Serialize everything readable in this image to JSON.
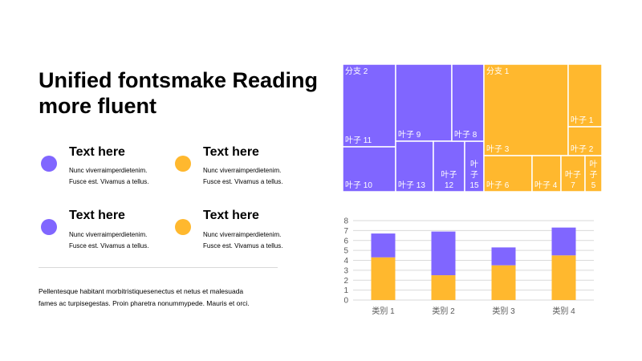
{
  "colors": {
    "purple": "#8066ff",
    "orange": "#ffb82e",
    "grid": "#d9d9d9",
    "axis_text": "#595959"
  },
  "title": "Unified fontsmake Reading more fluent",
  "features": [
    {
      "heading": "Text here",
      "line1": "Nunc viverraimperdietenim.",
      "line2": "Fusce est. Vivamus a tellus.",
      "color": "purple"
    },
    {
      "heading": "Text here",
      "line1": "Nunc viverraimperdietenim.",
      "line2": "Fusce est. Vivamus a tellus.",
      "color": "orange"
    },
    {
      "heading": "Text here",
      "line1": "Nunc viverraimperdietenim.",
      "line2": "Fusce est. Vivamus a tellus.",
      "color": "purple"
    },
    {
      "heading": "Text here",
      "line1": "Nunc viverraimperdietenim.",
      "line2": "Fusce est. Vivamus a tellus.",
      "color": "orange"
    }
  ],
  "paragraph": {
    "line1": "Pellentesque habitant morbitristiquesenectus et netus et malesuada",
    "line2": "fames ac turpisegestas. Proin pharetra nonummypede.  Mauris et orci."
  },
  "chart_data": [
    {
      "type": "treemap",
      "groups": [
        {
          "name": "分支 2",
          "color": "purple",
          "leaves": [
            "叶子 11",
            "叶子 10",
            "叶子 9",
            "叶子 13",
            "叶子 12",
            "叶子 15",
            "叶子 8"
          ]
        },
        {
          "name": "分支 1",
          "color": "orange",
          "leaves": [
            "叶子 3",
            "叶子 1",
            "叶子 2",
            "叶子 6",
            "叶子 4",
            "叶子 7",
            "叶子 5"
          ]
        }
      ]
    },
    {
      "type": "bar",
      "stacked": true,
      "categories": [
        "类别 1",
        "类别 2",
        "类别 3",
        "类别 4"
      ],
      "series": [
        {
          "values": [
            4.3,
            2.5,
            3.5,
            4.5
          ],
          "color": "orange"
        },
        {
          "values": [
            2.4,
            4.4,
            1.8,
            2.8
          ],
          "color": "purple"
        }
      ],
      "ylim": [
        0,
        8
      ],
      "yticks": [
        0,
        1,
        2,
        3,
        4,
        5,
        6,
        7,
        8
      ],
      "grid": true,
      "legend": "none"
    }
  ]
}
